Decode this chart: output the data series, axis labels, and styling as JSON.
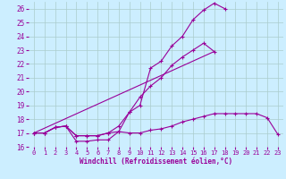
{
  "bg_color": "#cceeff",
  "grid_color": "#aacccc",
  "line_color": "#990099",
  "xlabel": "Windchill (Refroidissement éolien,°C)",
  "xlabel_color": "#990099",
  "xlim": [
    -0.5,
    23.5
  ],
  "ylim": [
    16,
    26.5
  ],
  "yticks": [
    16,
    17,
    18,
    19,
    20,
    21,
    22,
    23,
    24,
    25,
    26
  ],
  "xticks": [
    0,
    1,
    2,
    3,
    4,
    5,
    6,
    7,
    8,
    9,
    10,
    11,
    12,
    13,
    14,
    15,
    16,
    17,
    18,
    19,
    20,
    21,
    22,
    23
  ],
  "series": [
    {
      "x": [
        0,
        1,
        2,
        3,
        4,
        5,
        6,
        7,
        8,
        9,
        10,
        11,
        12,
        13,
        14,
        15,
        16,
        17,
        18
      ],
      "y": [
        17.0,
        17.0,
        17.4,
        17.5,
        16.4,
        16.4,
        16.5,
        16.5,
        17.1,
        18.5,
        19.0,
        21.7,
        22.2,
        23.3,
        24.0,
        25.2,
        25.9,
        26.4,
        26.0
      ]
    },
    {
      "x": [
        0,
        1,
        2,
        3,
        4,
        5,
        6,
        7,
        8,
        9,
        10,
        11,
        12,
        13,
        14,
        15,
        16,
        17,
        18,
        19,
        20,
        21,
        22,
        23
      ],
      "y": [
        17.0,
        17.0,
        17.4,
        17.5,
        16.8,
        16.8,
        16.8,
        17.0,
        17.1,
        17.0,
        17.0,
        17.2,
        17.3,
        17.5,
        17.8,
        18.0,
        18.2,
        18.4,
        18.4,
        18.4,
        18.4,
        18.4,
        18.1,
        16.9
      ]
    },
    {
      "x": [
        0,
        1,
        2,
        3,
        4,
        5,
        6,
        7,
        8,
        9,
        10,
        11,
        12,
        13,
        14,
        15,
        16,
        17
      ],
      "y": [
        17.0,
        17.0,
        17.4,
        17.5,
        16.8,
        16.8,
        16.8,
        17.0,
        17.5,
        18.5,
        19.6,
        20.4,
        21.0,
        21.9,
        22.5,
        23.0,
        23.5,
        22.9
      ]
    },
    {
      "x": [
        0,
        17
      ],
      "y": [
        17.0,
        22.9
      ]
    }
  ]
}
